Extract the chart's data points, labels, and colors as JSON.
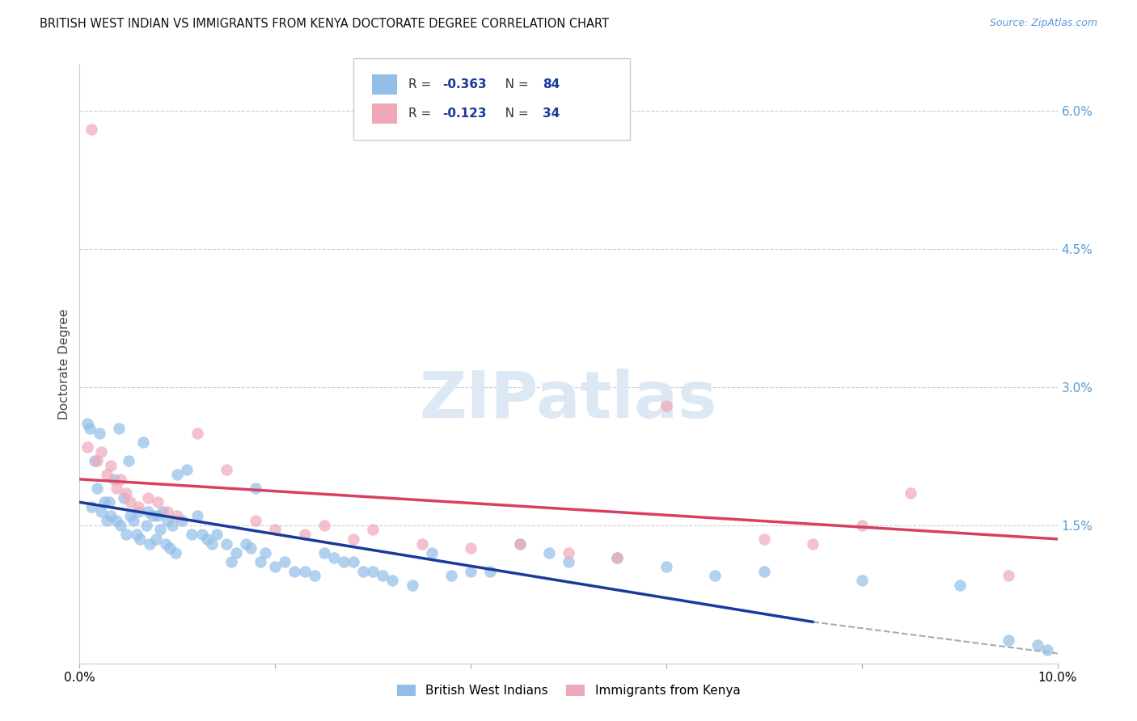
{
  "title": "BRITISH WEST INDIAN VS IMMIGRANTS FROM KENYA DOCTORATE DEGREE CORRELATION CHART",
  "source": "Source: ZipAtlas.com",
  "ylabel": "Doctorate Degree",
  "right_yvals": [
    0.0,
    1.5,
    3.0,
    4.5,
    6.0
  ],
  "right_labels": [
    "",
    "1.5%",
    "3.0%",
    "4.5%",
    "6.0%"
  ],
  "xlim": [
    0.0,
    10.0
  ],
  "ylim": [
    0.0,
    6.5
  ],
  "blue_R": -0.363,
  "blue_N": 84,
  "pink_R": -0.123,
  "pink_N": 34,
  "legend_label_blue": "British West Indians",
  "legend_label_pink": "Immigrants from Kenya",
  "blue_color": "#92BEE8",
  "pink_color": "#EFA8B8",
  "blue_line_color": "#1A3A9C",
  "pink_line_color": "#D94060",
  "grid_color": "#CCCCCC",
  "blue_line_x": [
    0.0,
    7.5
  ],
  "blue_line_y": [
    1.75,
    0.45
  ],
  "pink_line_x": [
    0.0,
    10.0
  ],
  "pink_line_y": [
    2.0,
    1.35
  ],
  "dash_line_x": [
    7.5,
    10.2
  ],
  "dash_line_y": [
    0.45,
    0.08
  ],
  "blue_pts_x": [
    0.08,
    0.1,
    0.12,
    0.15,
    0.18,
    0.2,
    0.22,
    0.25,
    0.28,
    0.3,
    0.32,
    0.35,
    0.38,
    0.4,
    0.42,
    0.45,
    0.48,
    0.5,
    0.52,
    0.55,
    0.58,
    0.6,
    0.62,
    0.65,
    0.68,
    0.7,
    0.72,
    0.75,
    0.78,
    0.8,
    0.82,
    0.85,
    0.88,
    0.9,
    0.92,
    0.95,
    0.98,
    1.0,
    1.05,
    1.1,
    1.15,
    1.2,
    1.25,
    1.3,
    1.35,
    1.4,
    1.5,
    1.55,
    1.6,
    1.7,
    1.75,
    1.8,
    1.85,
    1.9,
    2.0,
    2.1,
    2.2,
    2.3,
    2.4,
    2.5,
    2.6,
    2.7,
    2.8,
    2.9,
    3.0,
    3.1,
    3.2,
    3.4,
    3.6,
    3.8,
    4.0,
    4.2,
    4.5,
    4.8,
    5.0,
    5.5,
    6.0,
    6.5,
    7.0,
    8.0,
    9.0,
    9.5,
    9.8,
    9.9
  ],
  "blue_pts_y": [
    2.6,
    2.55,
    1.7,
    2.2,
    1.9,
    2.5,
    1.65,
    1.75,
    1.55,
    1.75,
    1.6,
    2.0,
    1.55,
    2.55,
    1.5,
    1.8,
    1.4,
    2.2,
    1.6,
    1.55,
    1.4,
    1.65,
    1.35,
    2.4,
    1.5,
    1.65,
    1.3,
    1.6,
    1.35,
    1.6,
    1.45,
    1.65,
    1.3,
    1.55,
    1.25,
    1.5,
    1.2,
    2.05,
    1.55,
    2.1,
    1.4,
    1.6,
    1.4,
    1.35,
    1.3,
    1.4,
    1.3,
    1.1,
    1.2,
    1.3,
    1.25,
    1.9,
    1.1,
    1.2,
    1.05,
    1.1,
    1.0,
    1.0,
    0.95,
    1.2,
    1.15,
    1.1,
    1.1,
    1.0,
    1.0,
    0.95,
    0.9,
    0.85,
    1.2,
    0.95,
    1.0,
    1.0,
    1.3,
    1.2,
    1.1,
    1.15,
    1.05,
    0.95,
    1.0,
    0.9,
    0.85,
    0.25,
    0.2,
    0.15
  ],
  "pink_pts_x": [
    0.08,
    0.12,
    0.18,
    0.22,
    0.28,
    0.32,
    0.38,
    0.42,
    0.48,
    0.52,
    0.6,
    0.7,
    0.8,
    0.9,
    1.0,
    1.2,
    1.5,
    1.8,
    2.0,
    2.3,
    2.5,
    2.8,
    3.0,
    3.5,
    4.0,
    4.5,
    5.0,
    5.5,
    6.0,
    7.0,
    7.5,
    8.0,
    8.5,
    9.5
  ],
  "pink_pts_y": [
    2.35,
    5.8,
    2.2,
    2.3,
    2.05,
    2.15,
    1.9,
    2.0,
    1.85,
    1.75,
    1.7,
    1.8,
    1.75,
    1.65,
    1.6,
    2.5,
    2.1,
    1.55,
    1.45,
    1.4,
    1.5,
    1.35,
    1.45,
    1.3,
    1.25,
    1.3,
    1.2,
    1.15,
    2.8,
    1.35,
    1.3,
    1.5,
    1.85,
    0.95
  ]
}
